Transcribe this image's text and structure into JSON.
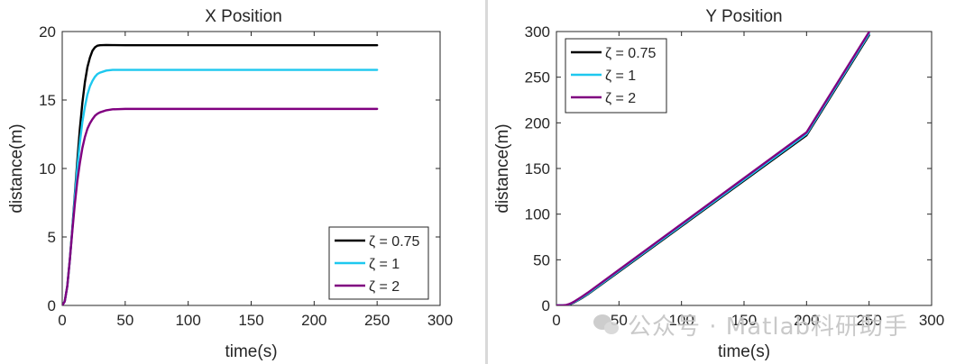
{
  "watermark": {
    "text": "公众号 · Matlab科研助手",
    "icon": "wechat-icon"
  },
  "chart_data": [
    {
      "type": "line",
      "title": "X Position",
      "xlabel": "time(s)",
      "ylabel": "distance(m)",
      "xlim": [
        0,
        300
      ],
      "ylim": [
        0,
        20
      ],
      "xticks": [
        0,
        50,
        100,
        150,
        200,
        250,
        300
      ],
      "yticks": [
        0,
        5,
        10,
        15,
        20
      ],
      "xtick_labels": [
        "0",
        "50",
        "100",
        "150",
        "200",
        "250",
        "300"
      ],
      "ytick_labels": [
        "0",
        "5",
        "10",
        "15",
        "20"
      ],
      "grid": false,
      "legend_position": "bottom-right",
      "series": [
        {
          "name": "ζ = 0.75",
          "color": "#000000",
          "x": [
            0,
            2,
            4,
            6,
            8,
            10,
            12,
            14,
            16,
            18,
            20,
            22,
            24,
            26,
            28,
            30,
            35,
            40,
            50,
            100,
            150,
            200,
            250
          ],
          "y": [
            0,
            0.3,
            1.4,
            3.3,
            5.6,
            8.1,
            10.6,
            12.9,
            14.8,
            16.3,
            17.4,
            18.1,
            18.6,
            18.85,
            18.97,
            19.0,
            19.02,
            19.01,
            19.0,
            19.0,
            19.0,
            19.0,
            19.0
          ]
        },
        {
          "name": "ζ = 1",
          "color": "#1ec8ef",
          "x": [
            0,
            2,
            4,
            6,
            8,
            10,
            12,
            14,
            16,
            18,
            20,
            22,
            24,
            26,
            28,
            30,
            35,
            40,
            50,
            100,
            150,
            200,
            250
          ],
          "y": [
            0,
            0.3,
            1.4,
            3.3,
            5.5,
            7.9,
            10.1,
            11.9,
            13.4,
            14.5,
            15.4,
            16.0,
            16.4,
            16.7,
            16.9,
            17.0,
            17.15,
            17.2,
            17.2,
            17.2,
            17.2,
            17.2,
            17.2
          ]
        },
        {
          "name": "ζ = 2",
          "color": "#800080",
          "x": [
            0,
            2,
            4,
            6,
            8,
            10,
            12,
            14,
            16,
            18,
            20,
            22,
            24,
            26,
            28,
            30,
            35,
            40,
            50,
            100,
            150,
            200,
            250
          ],
          "y": [
            0,
            0.3,
            1.4,
            3.3,
            5.4,
            7.4,
            9.1,
            10.4,
            11.5,
            12.3,
            12.9,
            13.3,
            13.6,
            13.85,
            14.0,
            14.1,
            14.25,
            14.32,
            14.35,
            14.35,
            14.35,
            14.35,
            14.35
          ]
        }
      ]
    },
    {
      "type": "line",
      "title": "Y Position",
      "xlabel": "time(s)",
      "ylabel": "distance(m)",
      "xlim": [
        0,
        300
      ],
      "ylim": [
        0,
        300
      ],
      "xticks": [
        0,
        50,
        100,
        150,
        200,
        250,
        300
      ],
      "yticks": [
        0,
        50,
        100,
        150,
        200,
        250,
        300
      ],
      "xtick_labels": [
        "0",
        "50",
        "100",
        "150",
        "200",
        "250",
        "300"
      ],
      "ytick_labels": [
        "0",
        "50",
        "100",
        "150",
        "200",
        "250",
        "300"
      ],
      "grid": false,
      "legend_position": "top-left",
      "series": [
        {
          "name": "ζ = 0.75",
          "color": "#000000",
          "x": [
            0,
            5,
            8,
            10,
            12,
            14,
            16,
            18,
            20,
            25,
            50,
            100,
            150,
            200,
            250
          ],
          "y": [
            0,
            0,
            0.3,
            0.9,
            1.9,
            3.2,
            4.7,
            6.2,
            7.8,
            12.2,
            37.0,
            86.8,
            136.6,
            186.4,
            296.0
          ]
        },
        {
          "name": "ζ = 1",
          "color": "#1ec8ef",
          "x": [
            0,
            5,
            8,
            10,
            12,
            14,
            16,
            18,
            20,
            25,
            50,
            100,
            150,
            200,
            250
          ],
          "y": [
            0,
            0,
            0.4,
            1.1,
            2.2,
            3.6,
            5.1,
            6.7,
            8.4,
            12.8,
            37.8,
            87.8,
            137.8,
            187.8,
            297.5
          ]
        },
        {
          "name": "ζ = 2",
          "color": "#800080",
          "x": [
            0,
            5,
            8,
            10,
            12,
            14,
            16,
            18,
            20,
            25,
            50,
            100,
            150,
            200,
            250
          ],
          "y": [
            0,
            0.1,
            0.6,
            1.4,
            2.6,
            4.1,
            5.8,
            7.5,
            9.3,
            13.9,
            39.0,
            89.2,
            139.4,
            189.6,
            299.5
          ]
        }
      ]
    }
  ]
}
